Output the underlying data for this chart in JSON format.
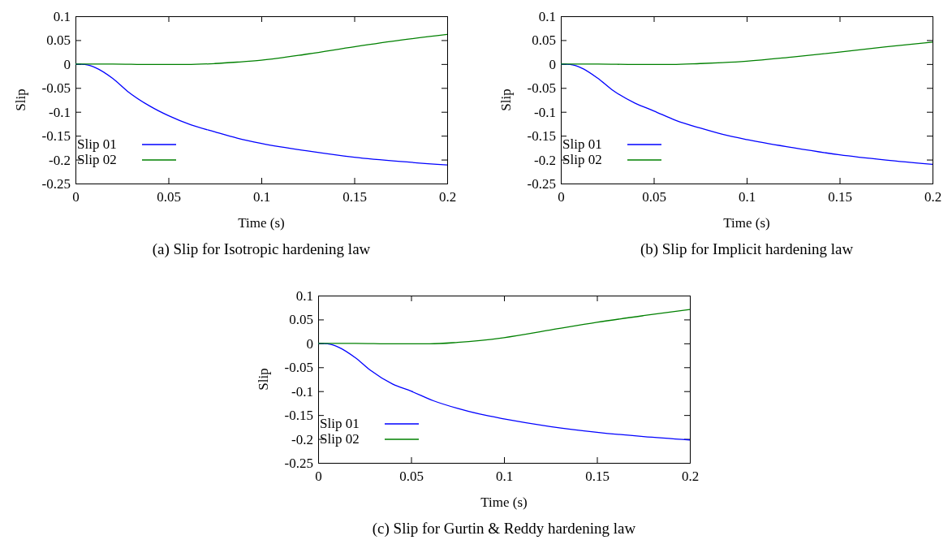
{
  "chart_data": [
    {
      "type": "line",
      "title": "(a) Slip for Isotropic hardening law",
      "xlabel": "Time (s)",
      "ylabel": "Slip",
      "xlim": [
        0,
        0.2
      ],
      "xticks": [
        0,
        0.05,
        0.1,
        0.15,
        0.2
      ],
      "ylim": [
        -0.25,
        0.1
      ],
      "yticks": [
        -0.25,
        -0.2,
        -0.15,
        -0.1,
        -0.05,
        0,
        0.05,
        0.1
      ],
      "legend": "bottom left",
      "grid": false,
      "marker": "none",
      "line_style": "solid",
      "series": [
        {
          "name": "Slip 01",
          "color": "#0000ff",
          "x": [
            0,
            0.005,
            0.011,
            0.02,
            0.028,
            0.04,
            0.05,
            0.062,
            0.075,
            0.087,
            0.1,
            0.125,
            0.15,
            0.175,
            0.2
          ],
          "values": [
            0,
            -0.001,
            -0.008,
            -0.03,
            -0.057,
            -0.088,
            -0.108,
            -0.127,
            -0.142,
            -0.155,
            -0.166,
            -0.182,
            -0.195,
            -0.204,
            -0.211
          ]
        },
        {
          "name": "Slip 02",
          "color": "#008000",
          "x": [
            0,
            0.02,
            0.04,
            0.06,
            0.075,
            0.087,
            0.1,
            0.125,
            0.15,
            0.175,
            0.2
          ],
          "values": [
            0,
            0,
            -0.001,
            -0.001,
            0.001,
            0.004,
            0.008,
            0.021,
            0.036,
            0.05,
            0.062
          ]
        }
      ]
    },
    {
      "type": "line",
      "title": "(b) Slip for Implicit hardening law",
      "xlabel": "Time (s)",
      "ylabel": "Slip",
      "xlim": [
        0,
        0.2
      ],
      "xticks": [
        0,
        0.05,
        0.1,
        0.15,
        0.2
      ],
      "ylim": [
        -0.25,
        0.1
      ],
      "yticks": [
        -0.25,
        -0.2,
        -0.15,
        -0.1,
        -0.05,
        0,
        0.05,
        0.1
      ],
      "legend": "bottom left",
      "grid": false,
      "marker": "none",
      "line_style": "solid",
      "series": [
        {
          "name": "Slip 01",
          "color": "#0000ff",
          "x": [
            0,
            0.005,
            0.011,
            0.02,
            0.028,
            0.04,
            0.05,
            0.062,
            0.075,
            0.087,
            0.1,
            0.125,
            0.15,
            0.175,
            0.2
          ],
          "values": [
            0,
            -0.001,
            -0.008,
            -0.03,
            -0.055,
            -0.082,
            -0.098,
            -0.118,
            -0.134,
            -0.147,
            -0.158,
            -0.175,
            -0.19,
            -0.201,
            -0.21
          ]
        },
        {
          "name": "Slip 02",
          "color": "#008000",
          "x": [
            0,
            0.02,
            0.04,
            0.06,
            0.075,
            0.087,
            0.1,
            0.125,
            0.15,
            0.175,
            0.2
          ],
          "values": [
            0,
            0,
            -0.001,
            -0.001,
            0.001,
            0.003,
            0.006,
            0.015,
            0.025,
            0.036,
            0.046
          ]
        }
      ]
    },
    {
      "type": "line",
      "title": "(c) Slip for Gurtin & Reddy hardening law",
      "xlabel": "Time (s)",
      "ylabel": "Slip",
      "xlim": [
        0,
        0.2
      ],
      "xticks": [
        0,
        0.05,
        0.1,
        0.15,
        0.2
      ],
      "ylim": [
        -0.25,
        0.1
      ],
      "yticks": [
        -0.25,
        -0.2,
        -0.15,
        -0.1,
        -0.05,
        0,
        0.05,
        0.1
      ],
      "legend": "bottom left",
      "grid": false,
      "marker": "none",
      "line_style": "solid",
      "series": [
        {
          "name": "Slip 01",
          "color": "#0000ff",
          "x": [
            0,
            0.005,
            0.011,
            0.02,
            0.028,
            0.04,
            0.05,
            0.062,
            0.075,
            0.087,
            0.1,
            0.125,
            0.15,
            0.175,
            0.2
          ],
          "values": [
            0,
            -0.001,
            -0.008,
            -0.03,
            -0.056,
            -0.085,
            -0.1,
            -0.12,
            -0.136,
            -0.148,
            -0.158,
            -0.174,
            -0.186,
            -0.195,
            -0.202
          ]
        },
        {
          "name": "Slip 02",
          "color": "#008000",
          "x": [
            0,
            0.02,
            0.04,
            0.06,
            0.075,
            0.087,
            0.1,
            0.125,
            0.15,
            0.175,
            0.2
          ],
          "values": [
            0,
            0,
            -0.001,
            -0.001,
            0.002,
            0.006,
            0.012,
            0.028,
            0.044,
            0.058,
            0.071
          ]
        }
      ]
    }
  ]
}
